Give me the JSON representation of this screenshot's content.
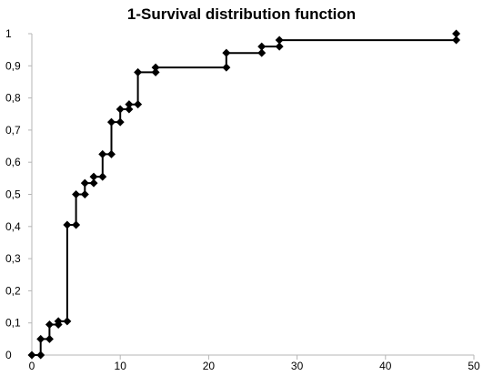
{
  "chart_data": {
    "type": "line",
    "step": true,
    "title": "1-Survival distribution function",
    "xlabel": "",
    "ylabel": "",
    "xlim": [
      0,
      50
    ],
    "ylim": [
      0,
      1
    ],
    "grid": false,
    "legend": "none",
    "line_color": "#000000",
    "marker": "diamond",
    "x_ticks": [
      0,
      10,
      20,
      30,
      40,
      50
    ],
    "x_tick_labels": [
      "0",
      "10",
      "20",
      "30",
      "40",
      "50"
    ],
    "y_tick_values": [
      0,
      0.1,
      0.2,
      0.3,
      0.4,
      0.5,
      0.6,
      0.7,
      0.8,
      0.9,
      1
    ],
    "y_tick_labels": [
      "0",
      "0,1",
      "0,2",
      "0,3",
      "0,4",
      "0,5",
      "0,6",
      "0,7",
      "0,8",
      "0,9",
      "1"
    ],
    "series": [
      {
        "x": [
          0,
          1,
          1,
          2,
          2,
          3,
          3,
          4,
          4,
          5,
          5,
          6,
          6,
          7,
          7,
          8,
          8,
          9,
          9,
          10,
          10,
          11,
          11,
          12,
          12,
          14,
          14,
          22,
          22,
          26,
          26,
          28,
          28,
          48,
          48
        ],
        "y": [
          0,
          0,
          0.05,
          0.05,
          0.095,
          0.095,
          0.105,
          0.105,
          0.405,
          0.405,
          0.5,
          0.5,
          0.535,
          0.535,
          0.555,
          0.555,
          0.625,
          0.625,
          0.725,
          0.725,
          0.765,
          0.765,
          0.78,
          0.78,
          0.88,
          0.88,
          0.895,
          0.895,
          0.94,
          0.94,
          0.96,
          0.96,
          0.98,
          0.98,
          1.0
        ]
      }
    ]
  }
}
